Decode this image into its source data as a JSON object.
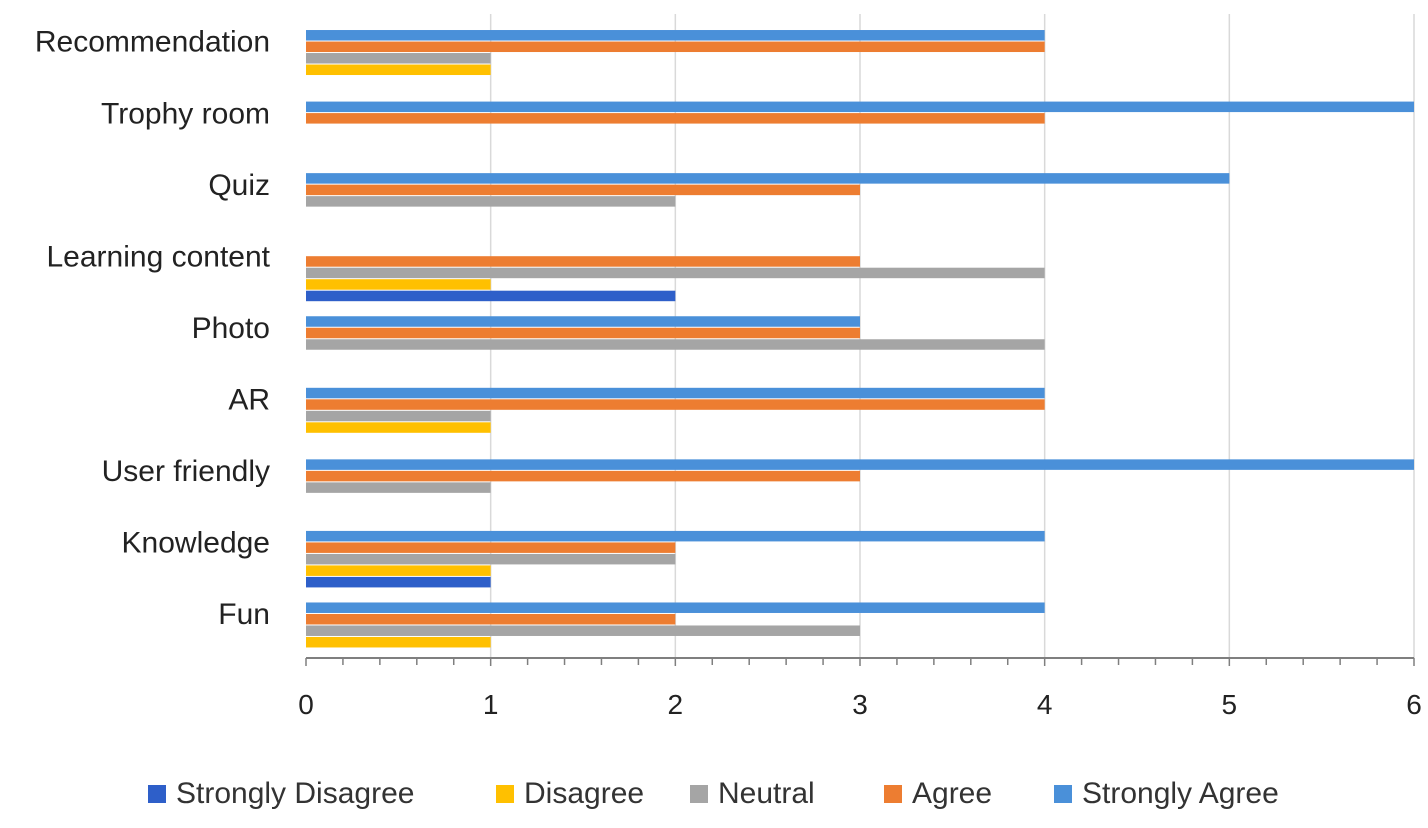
{
  "chart_data": {
    "type": "bar",
    "orientation": "horizontal",
    "categories": [
      "Fun",
      "Knowledge",
      "User friendly",
      "AR",
      "Photo",
      "Learning content",
      "Quiz",
      "Trophy room",
      "Recommendation"
    ],
    "series": [
      {
        "name": "Strongly Disagree",
        "color": "#2e5fc9",
        "values": [
          0,
          1,
          0,
          0,
          0,
          2,
          0,
          0,
          0
        ]
      },
      {
        "name": "Disagree",
        "color": "#ffc000",
        "values": [
          1,
          1,
          0,
          1,
          0,
          1,
          0,
          0,
          1
        ]
      },
      {
        "name": "Neutral",
        "color": "#a5a5a5",
        "values": [
          3,
          2,
          1,
          1,
          4,
          4,
          2,
          0,
          1
        ]
      },
      {
        "name": "Agree",
        "color": "#ed7d31",
        "values": [
          2,
          2,
          3,
          4,
          3,
          3,
          3,
          4,
          4
        ]
      },
      {
        "name": "Strongly Agree",
        "color": "#4a90d9",
        "values": [
          4,
          4,
          6,
          4,
          3,
          0,
          5,
          6,
          4
        ]
      }
    ],
    "xlim": [
      0,
      6
    ],
    "x_ticks": [
      "0",
      "1",
      "2",
      "3",
      "4",
      "5",
      "6"
    ],
    "grid": true,
    "legend_position": "bottom",
    "title": "",
    "xlabel": "",
    "ylabel": ""
  }
}
